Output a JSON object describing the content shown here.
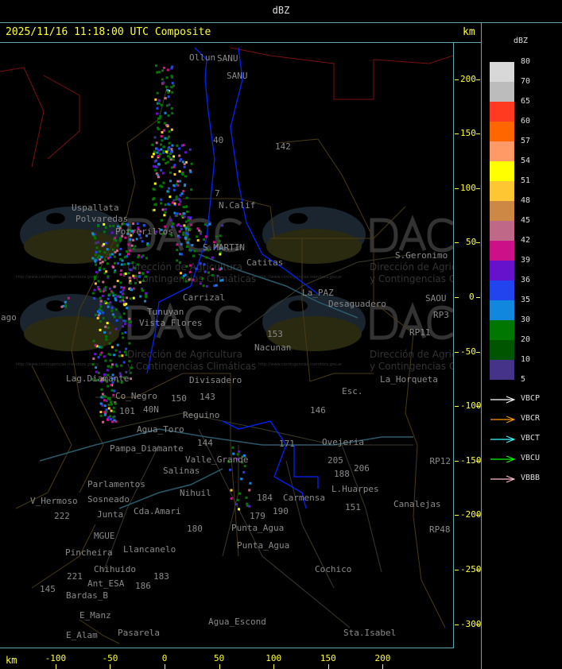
{
  "window_title": "dBZ",
  "header": {
    "timestamp_title": "2025/11/16 11:18:00 UTC Composite",
    "unit": "km"
  },
  "x_axis": {
    "unit": "km",
    "ticks": [
      "-100",
      "-50",
      "0",
      "50",
      "100",
      "150",
      "200"
    ]
  },
  "y_axis": {
    "ticks": [
      "200",
      "150",
      "100",
      "50",
      "0",
      "-50",
      "-100",
      "-150",
      "-200",
      "-250",
      "-300"
    ]
  },
  "legend": {
    "title": "dBZ",
    "levels": [
      {
        "label": "80",
        "color": "#d8d8d8"
      },
      {
        "label": "70",
        "color": "#bcbcbc"
      },
      {
        "label": "65",
        "color": "#ff3a20"
      },
      {
        "label": "60",
        "color": "#ff6600"
      },
      {
        "label": "57",
        "color": "#ff9966"
      },
      {
        "label": "54",
        "color": "#ffff00"
      },
      {
        "label": "51",
        "color": "#ffc633"
      },
      {
        "label": "48",
        "color": "#cc8844"
      },
      {
        "label": "45",
        "color": "#c06888"
      },
      {
        "label": "42",
        "color": "#cc1188"
      },
      {
        "label": "39",
        "color": "#6611cc"
      },
      {
        "label": "36",
        "color": "#2244ee"
      },
      {
        "label": "35",
        "color": "#1188dd"
      },
      {
        "label": "30",
        "color": "#007700"
      },
      {
        "label": "20",
        "color": "#005500"
      },
      {
        "label": "10",
        "color": "#443388"
      }
    ],
    "bottom_label": "5",
    "radars": [
      {
        "label": "VBCP",
        "color": "#ffffff"
      },
      {
        "label": "VBCR",
        "color": "#ff9900"
      },
      {
        "label": "VBCT",
        "color": "#33ffff"
      },
      {
        "label": "VBCU",
        "color": "#00ff00"
      },
      {
        "label": "VBBB",
        "color": "#ffbbcc"
      }
    ]
  },
  "watermark": {
    "logo_text": "DACC",
    "line1": "Dirección de Agricultura",
    "line2": "y Contingencias Climáticas",
    "url": "http://www.contingencias.mendoza.gov.ar"
  },
  "places": [
    "Uspallata",
    "Polvaredas",
    "Potrerillos",
    "S.MARTIN",
    "N.Calif",
    "Carrizal",
    "Catitas",
    "La_PAZ",
    "Desaguadero",
    "S.Geronimo",
    "SAOU",
    "Tunuyan",
    "Vista_Flores",
    "Nacunan",
    "La_Horqueta",
    "Divisadero",
    "Lag.Diamante",
    "Co_Negro",
    "Agua_Toro",
    "Pampa_Diamante",
    "Reguino",
    "Valle_Grande",
    "Salinas",
    "Nihuil",
    "Cda.Amari",
    "Parlamentos",
    "Sosneado",
    "V_Hermoso",
    "Junta",
    "MGUE",
    "Pincheira",
    "Llancanelo",
    "Chihuido",
    "Ant_ESA",
    "Bardas_B",
    "E_Manz",
    "E_Alam",
    "Pasarela",
    "Agua_Escond",
    "Punta_Agua",
    "Carmensa",
    "Cochico",
    "Sta.Isabel",
    "Ovejeria",
    "L.Huarpes",
    "Canalejas",
    "Esc.",
    "Punta_Agua",
    "ago",
    "Ollun",
    "SANU"
  ],
  "route_labels": [
    "40",
    "142",
    "153",
    "146",
    "143",
    "150",
    "144",
    "171",
    "205",
    "206",
    "188",
    "151",
    "184",
    "179",
    "190",
    "180",
    "186",
    "183",
    "145",
    "221",
    "222",
    "101",
    "40N",
    "RP3",
    "RP12",
    "RP48",
    "RP11",
    "7",
    "SANU"
  ]
}
